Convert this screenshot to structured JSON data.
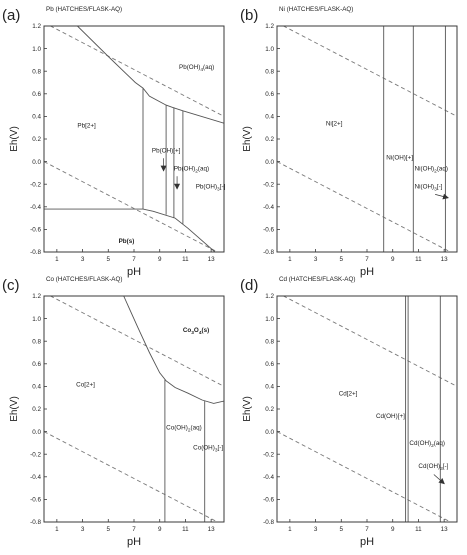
{
  "colors": {
    "frame": "#3a3a3a",
    "boundary": "#555555",
    "water_line": "#7a7a7a",
    "text": "#222222"
  },
  "chart_data": [
    {
      "type": "line",
      "panel_letter": "(a)",
      "title": "Pb (HATCHES/FLASK-AQ)",
      "xlabel": "pH",
      "ylabel": "Eh(V)",
      "xlim": [
        0,
        14
      ],
      "ylim": [
        -0.8,
        1.2
      ],
      "xticks": [
        1,
        3,
        5,
        7,
        9,
        11,
        13
      ],
      "yticks": [
        -0.8,
        -0.6,
        -0.4,
        -0.2,
        0.0,
        0.2,
        0.4,
        0.6,
        0.8,
        1.0,
        1.2
      ],
      "grid": false,
      "water_lines": [
        {
          "x": [
            0,
            14
          ],
          "y": [
            1.23,
            0.4
          ]
        },
        {
          "x": [
            0,
            14
          ],
          "y": [
            0.0,
            -0.83
          ]
        }
      ],
      "boundaries": [
        {
          "x": [
            0,
            7.7
          ],
          "y": [
            -0.42,
            -0.42
          ]
        },
        {
          "x": [
            7.7,
            8.5,
            10.2,
            11.2,
            13.3
          ],
          "y": [
            -0.42,
            -0.44,
            -0.5,
            -0.59,
            -0.8
          ]
        },
        {
          "x": [
            2.6,
            5.0,
            7.1,
            7.7,
            8.2,
            9.5,
            10.0,
            10.8,
            14.0
          ],
          "y": [
            1.2,
            0.93,
            0.7,
            0.65,
            0.58,
            0.5,
            0.48,
            0.45,
            0.34
          ]
        },
        {
          "x": [
            7.7,
            7.7
          ],
          "y": [
            0.65,
            -0.42
          ]
        },
        {
          "x": [
            9.5,
            9.5
          ],
          "y": [
            0.5,
            -0.47
          ]
        },
        {
          "x": [
            10.1,
            10.1
          ],
          "y": [
            0.48,
            -0.5
          ]
        },
        {
          "x": [
            10.8,
            10.8
          ],
          "y": [
            0.45,
            -0.55
          ]
        }
      ],
      "annotations": [
        {
          "text": "Pb[2+]",
          "x": 2.6,
          "y": 0.3,
          "bold": false
        },
        {
          "text": "Pb(OH)",
          "sub": "4",
          "tail": "(aq)",
          "x": 10.5,
          "y": 0.82,
          "bold": false
        },
        {
          "text": "Pb(OH)[+]",
          "x": 9.5,
          "y": 0.08,
          "bold": false,
          "anchor": "middle",
          "arrow": [
            9.3,
            0.03,
            9.3,
            -0.08
          ]
        },
        {
          "text": "Pb(OH)",
          "sub": "2",
          "tail": "(aq)",
          "x": 10.1,
          "y": -0.08,
          "bold": false,
          "arrow": [
            10.35,
            -0.13,
            10.35,
            -0.24
          ]
        },
        {
          "text": "Pb(OH)",
          "sub": "3",
          "tail": "[-]",
          "x": 11.8,
          "y": -0.24,
          "bold": false
        },
        {
          "text": "Pb(s)",
          "x": 5.8,
          "y": -0.72,
          "bold": true
        }
      ]
    },
    {
      "type": "line",
      "panel_letter": "(b)",
      "title": "Ni (HATCHES/FLASK-AQ)",
      "xlabel": "pH",
      "ylabel": "Eh(V)",
      "xlim": [
        0,
        14
      ],
      "ylim": [
        -0.8,
        1.2
      ],
      "xticks": [
        1,
        3,
        5,
        7,
        9,
        11,
        13
      ],
      "yticks": [
        -0.8,
        -0.6,
        -0.4,
        -0.2,
        0.0,
        0.2,
        0.4,
        0.6,
        0.8,
        1.0,
        1.2
      ],
      "grid": false,
      "water_lines": [
        {
          "x": [
            0,
            14
          ],
          "y": [
            1.23,
            0.4
          ]
        },
        {
          "x": [
            0,
            14
          ],
          "y": [
            0.0,
            -0.83
          ]
        }
      ],
      "boundaries": [
        {
          "x": [
            8.3,
            8.3
          ],
          "y": [
            1.2,
            -0.8
          ]
        },
        {
          "x": [
            10.6,
            10.6
          ],
          "y": [
            1.2,
            -0.8
          ]
        },
        {
          "x": [
            13.1,
            13.1
          ],
          "y": [
            1.2,
            -0.8
          ]
        }
      ],
      "annotations": [
        {
          "text": "Ni[2+]",
          "x": 3.8,
          "y": 0.32,
          "bold": false
        },
        {
          "text": "Ni(OH)[+]",
          "x": 8.5,
          "y": 0.02,
          "bold": false
        },
        {
          "text": "Ni(OH)",
          "sub": "2",
          "tail": "(aq)",
          "x": 10.7,
          "y": -0.08,
          "bold": false
        },
        {
          "text": "Ni(OH)",
          "sub": "3",
          "tail": "[-]",
          "x": 10.7,
          "y": -0.24,
          "bold": false,
          "arrow": [
            12.3,
            -0.29,
            13.3,
            -0.32
          ]
        }
      ]
    },
    {
      "type": "line",
      "panel_letter": "(c)",
      "title": "Co (HATCHES/FLASK-AQ)",
      "xlabel": "pH",
      "ylabel": "Eh(V)",
      "xlim": [
        0,
        14
      ],
      "ylim": [
        -0.8,
        1.2
      ],
      "xticks": [
        1,
        3,
        5,
        7,
        9,
        11,
        13
      ],
      "yticks": [
        -0.8,
        -0.6,
        -0.4,
        -0.2,
        0.0,
        0.2,
        0.4,
        0.6,
        0.8,
        1.0,
        1.2
      ],
      "grid": false,
      "water_lines": [
        {
          "x": [
            0,
            14
          ],
          "y": [
            1.23,
            0.4
          ]
        },
        {
          "x": [
            0,
            14
          ],
          "y": [
            0.0,
            -0.83
          ]
        }
      ],
      "boundaries": [
        {
          "x": [
            6.2,
            7.3,
            8.2,
            9.0,
            9.5,
            10.2,
            11.2,
            12.3,
            13.2,
            14.0
          ],
          "y": [
            1.2,
            0.92,
            0.7,
            0.52,
            0.45,
            0.39,
            0.34,
            0.28,
            0.25,
            0.27
          ]
        },
        {
          "x": [
            9.4,
            9.4
          ],
          "y": [
            0.46,
            -0.8
          ]
        },
        {
          "x": [
            12.5,
            12.5
          ],
          "y": [
            0.27,
            -0.8
          ]
        }
      ],
      "annotations": [
        {
          "text": "Co[2+]",
          "x": 2.5,
          "y": 0.4,
          "bold": false
        },
        {
          "text": "Co",
          "sub": "3",
          "tail2": "O",
          "sub2": "4",
          "tail": "(s)",
          "x": 10.8,
          "y": 0.88,
          "bold": true
        },
        {
          "text": "Co(OH)",
          "sub": "2",
          "tail": "(aq)",
          "x": 9.5,
          "y": 0.02,
          "bold": false
        },
        {
          "text": "Co(OH)",
          "sub": "3",
          "tail": "[-]",
          "x": 11.6,
          "y": -0.16,
          "bold": false
        }
      ]
    },
    {
      "type": "line",
      "panel_letter": "(d)",
      "title": "Cd (HATCHES/FLASK-AQ)",
      "xlabel": "pH",
      "ylabel": "Eh(V)",
      "xlim": [
        0,
        14
      ],
      "ylim": [
        -0.8,
        1.2
      ],
      "xticks": [
        1,
        3,
        5,
        7,
        9,
        11,
        13
      ],
      "yticks": [
        -0.8,
        -0.6,
        -0.4,
        -0.2,
        0.0,
        0.2,
        0.4,
        0.6,
        0.8,
        1.0,
        1.2
      ],
      "grid": false,
      "water_lines": [
        {
          "x": [
            0,
            14
          ],
          "y": [
            1.23,
            0.4
          ]
        },
        {
          "x": [
            0,
            14
          ],
          "y": [
            0.0,
            -0.83
          ]
        }
      ],
      "boundaries": [
        {
          "x": [
            10.0,
            10.0
          ],
          "y": [
            1.2,
            -0.8
          ]
        },
        {
          "x": [
            10.2,
            10.2
          ],
          "y": [
            1.2,
            -0.8
          ]
        },
        {
          "x": [
            12.7,
            12.7
          ],
          "y": [
            1.2,
            -0.8
          ]
        }
      ],
      "annotations": [
        {
          "text": "Cd[2+]",
          "x": 4.8,
          "y": 0.32,
          "bold": false
        },
        {
          "text": "Cd(OH)[+]",
          "x": 7.7,
          "y": 0.12,
          "bold": false
        },
        {
          "text": "Cd(OH)",
          "sub": "2",
          "tail": "(aq)",
          "x": 10.3,
          "y": -0.12,
          "bold": false
        },
        {
          "text": "Cd(OH)",
          "sub": "3",
          "tail": "[-]",
          "x": 11.0,
          "y": -0.32,
          "bold": false,
          "arrow": [
            12.2,
            -0.38,
            13.0,
            -0.46
          ]
        }
      ]
    }
  ]
}
